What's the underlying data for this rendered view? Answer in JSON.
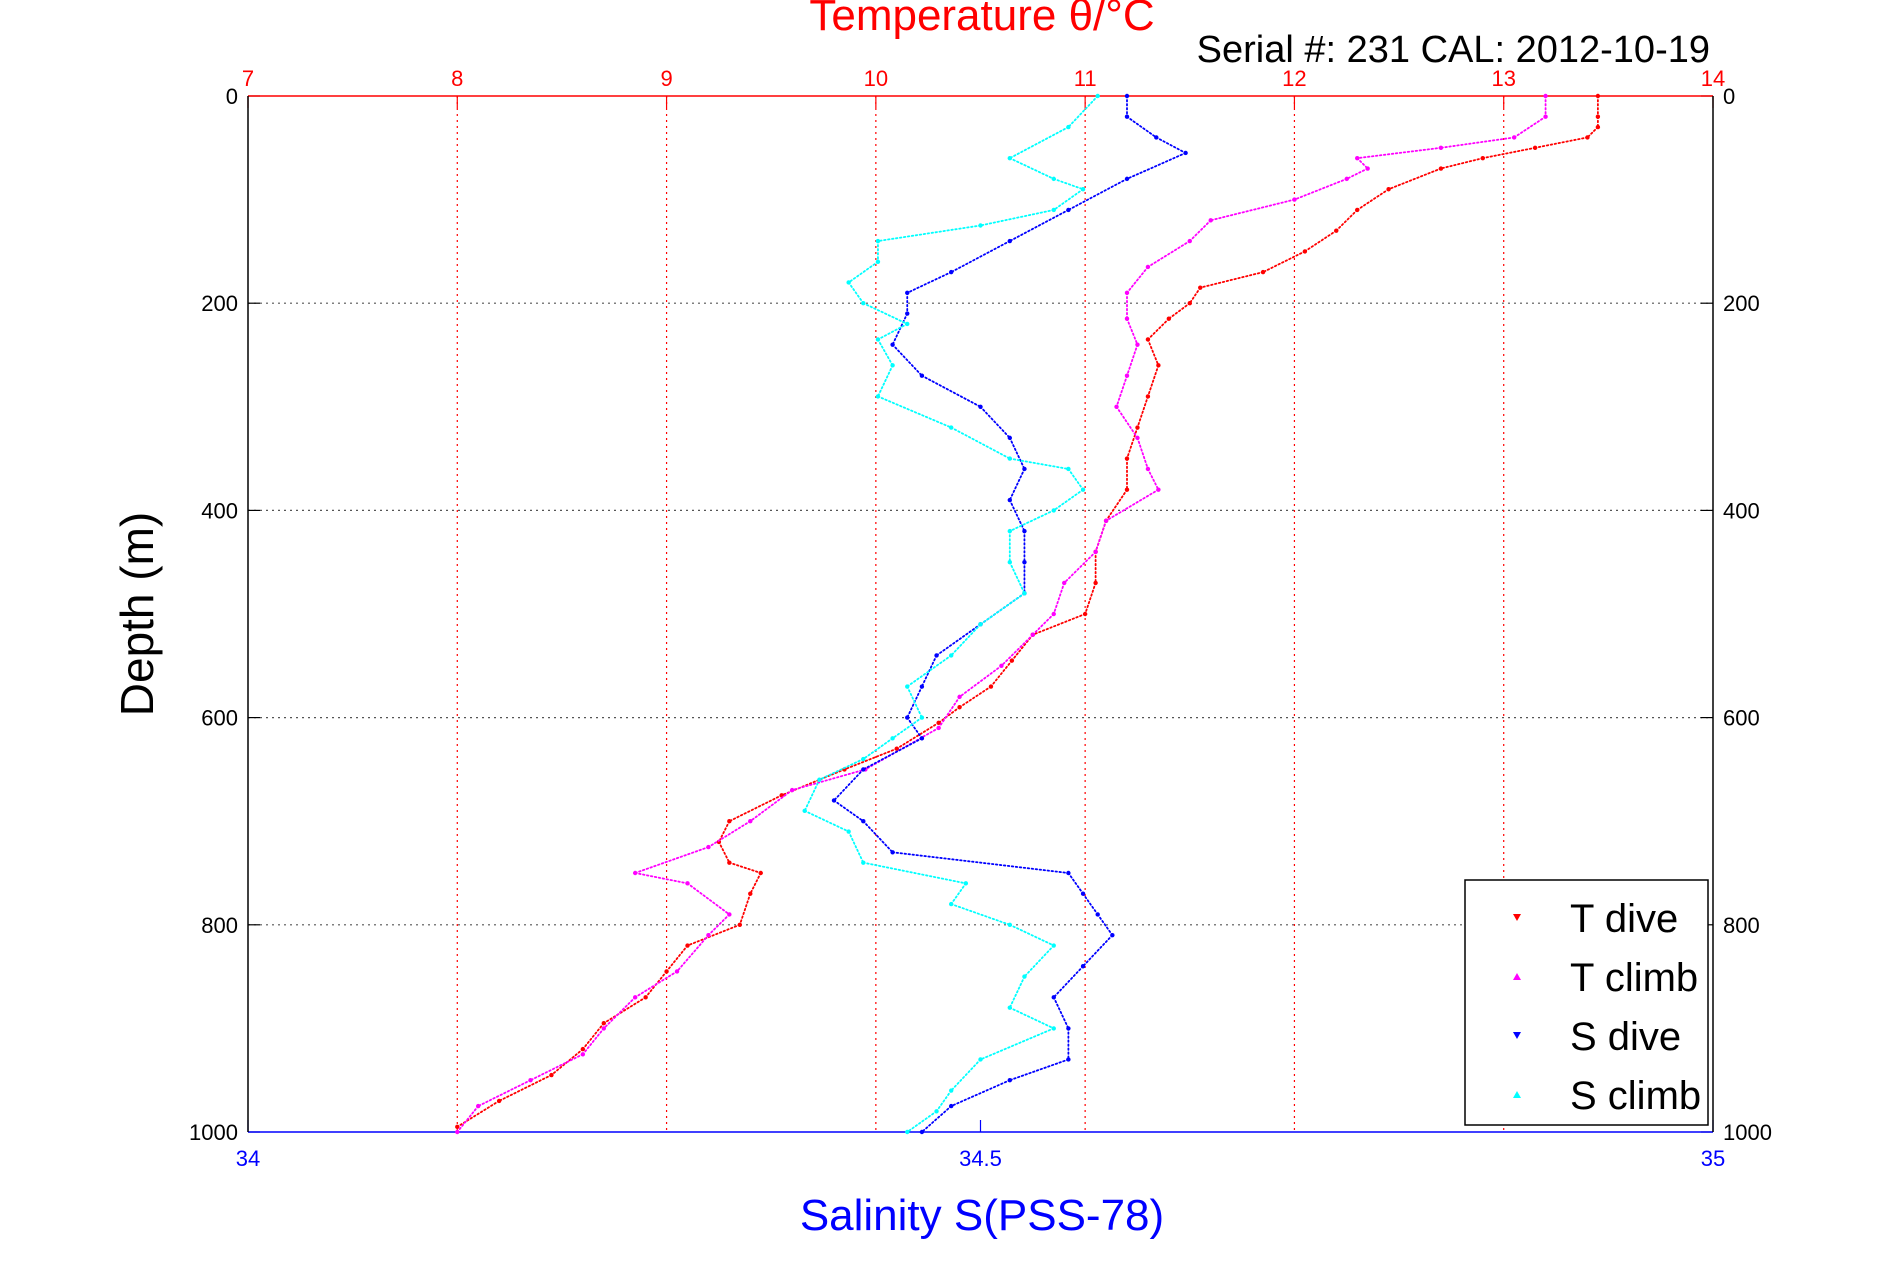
{
  "chart_data": {
    "type": "scatter",
    "title": "Temperature θ/°C",
    "subtitle": "Serial #: 231  CAL: 2012-10-19",
    "ylabel": "Depth (m)",
    "xlabel_bottom": "Salinity S(PSS-78)",
    "xlabel_top": "Temperature θ/°C",
    "y_reversed": true,
    "ylim": [
      0,
      1000
    ],
    "yticks": [
      "0",
      "200",
      "400",
      "600",
      "800",
      "1000"
    ],
    "x_top_lim": [
      7,
      14
    ],
    "x_top_ticks": [
      "7",
      "8",
      "9",
      "10",
      "11",
      "12",
      "13",
      "14"
    ],
    "x_bottom_lim": [
      34,
      35
    ],
    "x_bottom_ticks": [
      "34",
      "34.5",
      "35"
    ],
    "grid": true,
    "legend_position": "bottom-right",
    "colors": {
      "temperature_axis": "#ff0000",
      "salinity_axis": "#0000ff",
      "t_dive": "#ff0000",
      "t_climb": "#ff00ff",
      "s_dive": "#0000ff",
      "s_climb": "#00ffff"
    },
    "series": [
      {
        "name": "T dive",
        "axis": "temperature",
        "marker": "triangle-down",
        "points": [
          [
            13.45,
            0
          ],
          [
            13.45,
            20
          ],
          [
            13.45,
            30
          ],
          [
            13.4,
            40
          ],
          [
            13.15,
            50
          ],
          [
            12.9,
            60
          ],
          [
            12.7,
            70
          ],
          [
            12.45,
            90
          ],
          [
            12.3,
            110
          ],
          [
            12.2,
            130
          ],
          [
            12.05,
            150
          ],
          [
            11.85,
            170
          ],
          [
            11.55,
            185
          ],
          [
            11.5,
            200
          ],
          [
            11.4,
            215
          ],
          [
            11.3,
            235
          ],
          [
            11.35,
            260
          ],
          [
            11.3,
            290
          ],
          [
            11.25,
            320
          ],
          [
            11.2,
            350
          ],
          [
            11.2,
            380
          ],
          [
            11.1,
            410
          ],
          [
            11.05,
            440
          ],
          [
            11.05,
            470
          ],
          [
            11.0,
            500
          ],
          [
            10.75,
            520
          ],
          [
            10.65,
            545
          ],
          [
            10.55,
            570
          ],
          [
            10.4,
            590
          ],
          [
            10.3,
            605
          ],
          [
            10.1,
            630
          ],
          [
            9.85,
            650
          ],
          [
            9.55,
            675
          ],
          [
            9.3,
            700
          ],
          [
            9.25,
            720
          ],
          [
            9.3,
            740
          ],
          [
            9.45,
            750
          ],
          [
            9.4,
            770
          ],
          [
            9.35,
            800
          ],
          [
            9.1,
            820
          ],
          [
            9.0,
            845
          ],
          [
            8.9,
            870
          ],
          [
            8.7,
            895
          ],
          [
            8.6,
            920
          ],
          [
            8.45,
            945
          ],
          [
            8.2,
            970
          ],
          [
            8.0,
            995
          ]
        ]
      },
      {
        "name": "T climb",
        "axis": "temperature",
        "marker": "triangle-up",
        "points": [
          [
            13.2,
            0
          ],
          [
            13.2,
            20
          ],
          [
            13.05,
            40
          ],
          [
            12.7,
            50
          ],
          [
            12.3,
            60
          ],
          [
            12.35,
            70
          ],
          [
            12.25,
            80
          ],
          [
            12.0,
            100
          ],
          [
            11.6,
            120
          ],
          [
            11.5,
            140
          ],
          [
            11.3,
            165
          ],
          [
            11.2,
            190
          ],
          [
            11.2,
            215
          ],
          [
            11.25,
            240
          ],
          [
            11.2,
            270
          ],
          [
            11.15,
            300
          ],
          [
            11.25,
            330
          ],
          [
            11.3,
            360
          ],
          [
            11.35,
            380
          ],
          [
            11.1,
            410
          ],
          [
            11.05,
            440
          ],
          [
            10.9,
            470
          ],
          [
            10.85,
            500
          ],
          [
            10.75,
            520
          ],
          [
            10.6,
            550
          ],
          [
            10.4,
            580
          ],
          [
            10.3,
            610
          ],
          [
            9.95,
            650
          ],
          [
            9.6,
            670
          ],
          [
            9.4,
            700
          ],
          [
            9.2,
            725
          ],
          [
            8.85,
            750
          ],
          [
            9.1,
            760
          ],
          [
            9.3,
            790
          ],
          [
            9.2,
            810
          ],
          [
            9.05,
            845
          ],
          [
            8.85,
            870
          ],
          [
            8.7,
            900
          ],
          [
            8.6,
            925
          ],
          [
            8.35,
            950
          ],
          [
            8.1,
            975
          ],
          [
            8.0,
            1000
          ]
        ]
      },
      {
        "name": "S dive",
        "axis": "salinity",
        "marker": "triangle-down",
        "points": [
          [
            34.6,
            0
          ],
          [
            34.6,
            20
          ],
          [
            34.62,
            40
          ],
          [
            34.64,
            55
          ],
          [
            34.6,
            80
          ],
          [
            34.56,
            110
          ],
          [
            34.52,
            140
          ],
          [
            34.48,
            170
          ],
          [
            34.45,
            190
          ],
          [
            34.45,
            210
          ],
          [
            34.44,
            240
          ],
          [
            34.46,
            270
          ],
          [
            34.5,
            300
          ],
          [
            34.52,
            330
          ],
          [
            34.53,
            360
          ],
          [
            34.52,
            390
          ],
          [
            34.53,
            420
          ],
          [
            34.53,
            450
          ],
          [
            34.53,
            480
          ],
          [
            34.5,
            510
          ],
          [
            34.47,
            540
          ],
          [
            34.46,
            570
          ],
          [
            34.45,
            600
          ],
          [
            34.46,
            620
          ],
          [
            34.42,
            650
          ],
          [
            34.4,
            680
          ],
          [
            34.42,
            700
          ],
          [
            34.44,
            730
          ],
          [
            34.56,
            750
          ],
          [
            34.57,
            770
          ],
          [
            34.58,
            790
          ],
          [
            34.59,
            810
          ],
          [
            34.57,
            840
          ],
          [
            34.55,
            870
          ],
          [
            34.56,
            900
          ],
          [
            34.56,
            930
          ],
          [
            34.52,
            950
          ],
          [
            34.48,
            975
          ],
          [
            34.46,
            1000
          ]
        ]
      },
      {
        "name": "S climb",
        "axis": "salinity",
        "marker": "triangle-up",
        "points": [
          [
            34.58,
            0
          ],
          [
            34.56,
            30
          ],
          [
            34.52,
            60
          ],
          [
            34.55,
            80
          ],
          [
            34.57,
            90
          ],
          [
            34.55,
            110
          ],
          [
            34.5,
            125
          ],
          [
            34.43,
            140
          ],
          [
            34.43,
            160
          ],
          [
            34.41,
            180
          ],
          [
            34.42,
            200
          ],
          [
            34.45,
            220
          ],
          [
            34.43,
            235
          ],
          [
            34.44,
            260
          ],
          [
            34.43,
            290
          ],
          [
            34.48,
            320
          ],
          [
            34.52,
            350
          ],
          [
            34.56,
            360
          ],
          [
            34.57,
            380
          ],
          [
            34.55,
            400
          ],
          [
            34.52,
            420
          ],
          [
            34.52,
            450
          ],
          [
            34.53,
            480
          ],
          [
            34.5,
            510
          ],
          [
            34.48,
            540
          ],
          [
            34.45,
            570
          ],
          [
            34.46,
            600
          ],
          [
            34.44,
            620
          ],
          [
            34.42,
            640
          ],
          [
            34.39,
            660
          ],
          [
            34.38,
            690
          ],
          [
            34.41,
            710
          ],
          [
            34.42,
            740
          ],
          [
            34.49,
            760
          ],
          [
            34.48,
            780
          ],
          [
            34.52,
            800
          ],
          [
            34.55,
            820
          ],
          [
            34.53,
            850
          ],
          [
            34.52,
            880
          ],
          [
            34.55,
            900
          ],
          [
            34.5,
            930
          ],
          [
            34.48,
            960
          ],
          [
            34.47,
            980
          ],
          [
            34.45,
            1000
          ]
        ]
      }
    ]
  }
}
